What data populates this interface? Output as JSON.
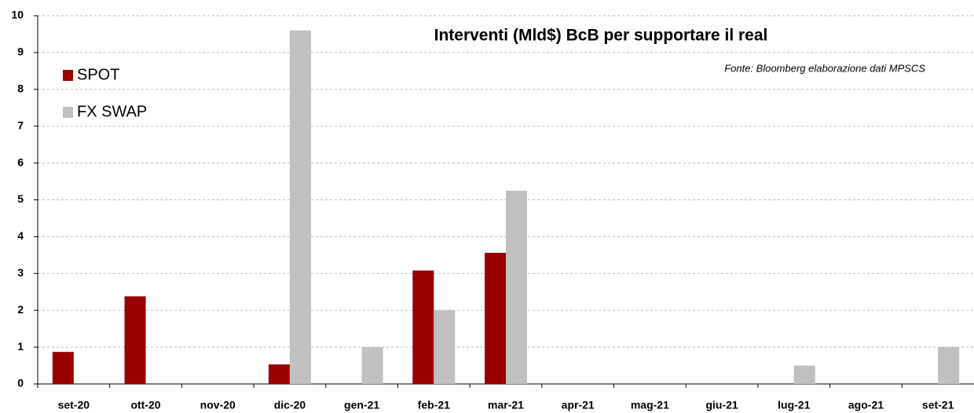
{
  "chart_data": {
    "type": "bar",
    "title": "Interventi (Mld$) BcB per supportare il real",
    "source": "Fonte: Bloomberg elaborazione dati MPSCS",
    "categories": [
      "set-20",
      "ott-20",
      "nov-20",
      "dic-20",
      "gen-21",
      "feb-21",
      "mar-21",
      "apr-21",
      "mag-21",
      "giu-21",
      "lug-21",
      "ago-21",
      "set-21"
    ],
    "series": [
      {
        "name": "SPOT",
        "color": "#990000",
        "values": [
          0.87,
          2.38,
          0,
          0.53,
          0,
          3.08,
          3.56,
          0,
          0,
          0,
          0,
          0,
          0
        ]
      },
      {
        "name": "FX SWAP",
        "color": "#c0c0c0",
        "values": [
          0,
          0,
          0,
          9.6,
          1.0,
          2.0,
          5.25,
          0,
          0,
          0,
          0.5,
          0,
          1.0
        ]
      }
    ],
    "ylim": [
      0,
      10
    ],
    "yticks": [
      0,
      1,
      2,
      3,
      4,
      5,
      6,
      7,
      8,
      9,
      10
    ],
    "grid": true,
    "legend": "upper left"
  }
}
